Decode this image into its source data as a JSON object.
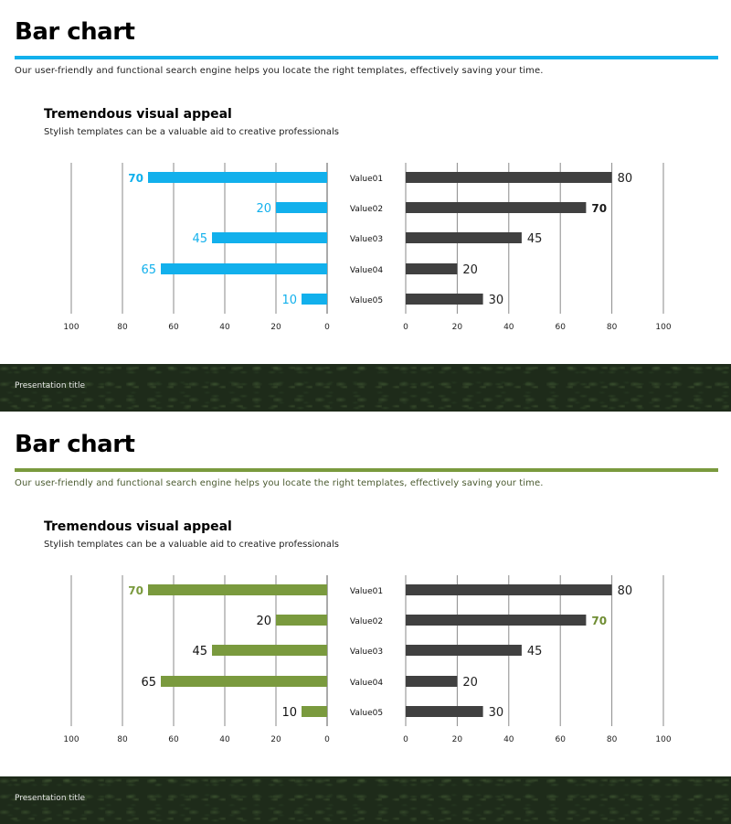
{
  "slides": [
    {
      "title": "Bar chart",
      "subtitle": "Our user-friendly and functional search engine helps you locate the right templates, effectively saving your time.",
      "heading": "Tremendous visual appeal",
      "subheading": "Stylish templates can be a valuable aid to creative professionals",
      "footer": "Presentation title",
      "accent": "#12b0ec",
      "left_label_color": "#12b0ec",
      "right_highlight_color": "#1a1a1a"
    },
    {
      "title": "Bar chart",
      "subtitle": "Our user-friendly and functional search engine helps you locate the right templates, effectively saving your time.",
      "heading": "Tremendous visual appeal",
      "subheading": "Stylish templates can be a valuable aid to creative professionals",
      "footer": "Presentation title",
      "accent": "#7a9a3e",
      "left_label_color": "#111111",
      "right_highlight_color": "#6f8d33"
    }
  ],
  "chart_data": [
    {
      "type": "bar",
      "orientation": "horizontal-mirrored",
      "categories": [
        "Value01",
        "Value02",
        "Value03",
        "Value04",
        "Value05"
      ],
      "series": [
        {
          "name": "left",
          "values": [
            70,
            20,
            45,
            65,
            10
          ],
          "color": "#12b0ec"
        },
        {
          "name": "right",
          "values": [
            80,
            70,
            45,
            20,
            30
          ],
          "color": "#404040"
        }
      ],
      "left_ticks": [
        "100",
        "80",
        "60",
        "40",
        "20",
        "0"
      ],
      "right_ticks": [
        "0",
        "20",
        "40",
        "60",
        "80",
        "100"
      ],
      "xlim": [
        0,
        100
      ],
      "highlight": {
        "left_index": 0,
        "right_index": 1
      }
    },
    {
      "type": "bar",
      "orientation": "horizontal-mirrored",
      "categories": [
        "Value01",
        "Value02",
        "Value03",
        "Value04",
        "Value05"
      ],
      "series": [
        {
          "name": "left",
          "values": [
            70,
            20,
            45,
            65,
            10
          ],
          "color": "#7a9a3e"
        },
        {
          "name": "right",
          "values": [
            80,
            70,
            45,
            20,
            30
          ],
          "color": "#404040"
        }
      ],
      "left_ticks": [
        "100",
        "80",
        "60",
        "40",
        "20",
        "0"
      ],
      "right_ticks": [
        "0",
        "20",
        "40",
        "60",
        "80",
        "100"
      ],
      "xlim": [
        0,
        100
      ],
      "highlight": {
        "left_index": 0,
        "right_index": 1
      }
    }
  ]
}
